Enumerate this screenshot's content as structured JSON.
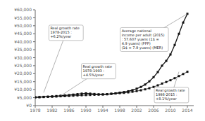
{
  "chart_data": {
    "type": "line",
    "x": [
      1978,
      1979,
      1980,
      1981,
      1982,
      1983,
      1984,
      1985,
      1986,
      1987,
      1988,
      1989,
      1990,
      1991,
      1992,
      1993,
      1994,
      1995,
      1996,
      1997,
      1998,
      1999,
      2000,
      2001,
      2002,
      2003,
      2004,
      2005,
      2006,
      2007,
      2008,
      2009,
      2010,
      2011,
      2012,
      2013,
      2014
    ],
    "series": [
      {
        "color": "#111111",
        "marker": "square",
        "values": [
          5200,
          5350,
          5500,
          5650,
          5800,
          6000,
          6200,
          6400,
          6600,
          6900,
          7200,
          7500,
          7700,
          7500,
          7300,
          7100,
          7000,
          7100,
          7400,
          7700,
          8100,
          8500,
          9000,
          9700,
          10600,
          11700,
          13200,
          15200,
          17800,
          21000,
          25000,
          28000,
          32000,
          38000,
          45000,
          52000,
          57500
        ]
      },
      {
        "color": "#111111",
        "marker": "square",
        "values": [
          5200,
          5300,
          5400,
          5500,
          5600,
          5700,
          5850,
          5950,
          6050,
          6200,
          6350,
          6500,
          6600,
          6700,
          6800,
          6900,
          7050,
          7200,
          7400,
          7600,
          7800,
          8000,
          8300,
          8700,
          9100,
          9600,
          10200,
          10900,
          11700,
          12700,
          13800,
          14800,
          15900,
          17200,
          18500,
          19800,
          21200
        ]
      }
    ],
    "xlim": [
      1978,
      2015.5
    ],
    "xticks": [
      1978,
      1982,
      1986,
      1990,
      1994,
      1998,
      2002,
      2006,
      2010,
      2014
    ],
    "ylim": [
      0,
      60000
    ],
    "yticks": [
      {
        "value": 0,
        "label": "¥0"
      },
      {
        "value": 5000,
        "label": "¥5,000"
      },
      {
        "value": 10000,
        "label": "¥10,000"
      },
      {
        "value": 15000,
        "label": "¥15,000"
      },
      {
        "value": 20000,
        "label": "¥20,000"
      },
      {
        "value": 25000,
        "label": "¥25,000"
      },
      {
        "value": 30000,
        "label": "¥30,000"
      },
      {
        "value": 35000,
        "label": "¥35,000"
      },
      {
        "value": 40000,
        "label": "¥40,000"
      },
      {
        "value": 45000,
        "label": "¥45,000"
      },
      {
        "value": 50000,
        "label": "¥50,000"
      },
      {
        "value": 55000,
        "label": "¥55,000"
      },
      {
        "value": 60000,
        "label": "¥60,000"
      }
    ],
    "annotations": [
      {
        "text": "Real growth rate\n1978-2015 :\n+6.2%/year",
        "x": 1980,
        "y": 8200
      },
      {
        "text": "Real growth rate\n1978-1993 :\n+4.5%/year",
        "x": 1984,
        "y": 6100
      },
      {
        "text": "Average national\nincome per adult (2015)\n: 57,607 yuans (1$ =\n4.9 yuans) (PPP)\n(1$ = 7.9 yuans) (MER)",
        "x": 2014,
        "y": 57500
      },
      {
        "text": "Real growth rate\n1998-2015 :\n+8.1%/year",
        "x": 2012,
        "y": 21200
      }
    ]
  }
}
